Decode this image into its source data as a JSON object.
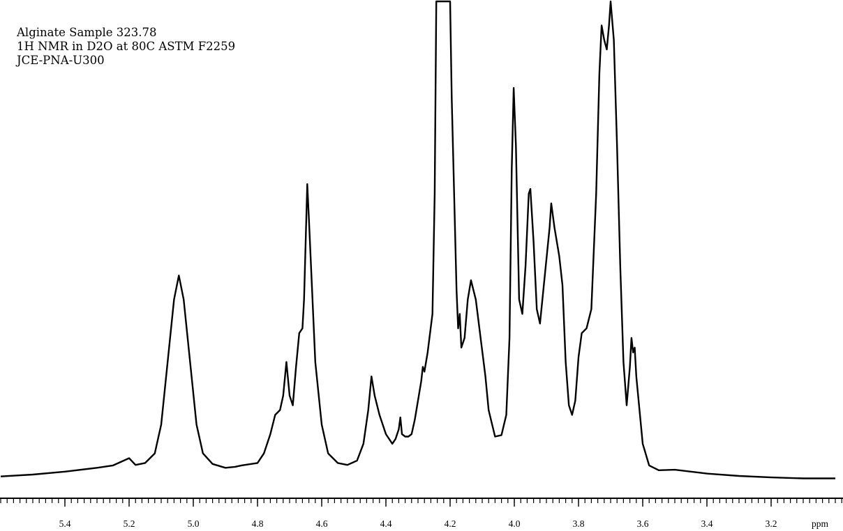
{
  "chart_data": {
    "type": "line",
    "annotations": [
      "Alginate Sample 323.78",
      "1H NMR in D2O at 80C ASTM F2259",
      "JCE-PNA-U300"
    ],
    "x_unit": "ppm",
    "x_direction": "reversed",
    "xlim": [
      5.6,
      3.0
    ],
    "x_ticks": [
      "5.4",
      "5.2",
      "5.0",
      "4.8",
      "4.6",
      "4.4",
      "4.2",
      "4.0",
      "3.8",
      "3.6",
      "3.4",
      "3.2"
    ],
    "y_axis": "none",
    "grid": false,
    "color": "#000000",
    "points": [
      [
        5.6,
        1.2
      ],
      [
        5.5,
        1.6
      ],
      [
        5.4,
        2.2
      ],
      [
        5.3,
        3.0
      ],
      [
        5.25,
        3.5
      ],
      [
        5.2,
        5.0
      ],
      [
        5.18,
        3.6
      ],
      [
        5.15,
        4.0
      ],
      [
        5.12,
        6.0
      ],
      [
        5.1,
        12.0
      ],
      [
        5.08,
        25.0
      ],
      [
        5.06,
        38.0
      ],
      [
        5.045,
        43.0
      ],
      [
        5.03,
        38.0
      ],
      [
        5.01,
        25.0
      ],
      [
        4.99,
        12.0
      ],
      [
        4.97,
        6.0
      ],
      [
        4.94,
        3.8
      ],
      [
        4.9,
        3.0
      ],
      [
        4.87,
        3.2
      ],
      [
        4.85,
        3.5
      ],
      [
        4.8,
        4.0
      ],
      [
        4.78,
        6.0
      ],
      [
        4.76,
        10.0
      ],
      [
        4.745,
        14.0
      ],
      [
        4.73,
        15.0
      ],
      [
        4.72,
        18.0
      ],
      [
        4.71,
        25.0
      ],
      [
        4.7,
        18.0
      ],
      [
        4.69,
        16.0
      ],
      [
        4.68,
        24.0
      ],
      [
        4.67,
        31.0
      ],
      [
        4.66,
        32.0
      ],
      [
        4.655,
        38.0
      ],
      [
        4.645,
        62.0
      ],
      [
        4.64,
        55.0
      ],
      [
        4.63,
        40.0
      ],
      [
        4.62,
        25.0
      ],
      [
        4.6,
        12.0
      ],
      [
        4.58,
        6.0
      ],
      [
        4.55,
        4.0
      ],
      [
        4.52,
        3.6
      ],
      [
        4.49,
        4.5
      ],
      [
        4.47,
        8.0
      ],
      [
        4.455,
        15.0
      ],
      [
        4.445,
        22.0
      ],
      [
        4.435,
        18.0
      ],
      [
        4.42,
        14.0
      ],
      [
        4.4,
        10.0
      ],
      [
        4.38,
        8.0
      ],
      [
        4.37,
        9.0
      ],
      [
        4.36,
        11.0
      ],
      [
        4.355,
        13.5
      ],
      [
        4.35,
        10.0
      ],
      [
        4.34,
        9.5
      ],
      [
        4.33,
        9.5
      ],
      [
        4.32,
        10.0
      ],
      [
        4.31,
        13.0
      ],
      [
        4.3,
        17.0
      ],
      [
        4.29,
        21.0
      ],
      [
        4.285,
        24.0
      ],
      [
        4.28,
        23.0
      ],
      [
        4.27,
        27.0
      ],
      [
        4.255,
        35.0
      ],
      [
        4.248,
        60.0
      ],
      [
        4.243,
        100.0
      ],
      [
        4.2,
        100.0
      ],
      [
        4.195,
        80.0
      ],
      [
        4.18,
        40.0
      ],
      [
        4.175,
        32.0
      ],
      [
        4.17,
        35.0
      ],
      [
        4.165,
        28.0
      ],
      [
        4.155,
        30.0
      ],
      [
        4.145,
        38.0
      ],
      [
        4.135,
        42.0
      ],
      [
        4.12,
        38.0
      ],
      [
        4.105,
        30.0
      ],
      [
        4.09,
        22.0
      ],
      [
        4.08,
        15.0
      ],
      [
        4.06,
        9.5
      ],
      [
        4.04,
        9.8
      ],
      [
        4.025,
        14.0
      ],
      [
        4.015,
        30.0
      ],
      [
        4.008,
        65.0
      ],
      [
        4.002,
        82.0
      ],
      [
        3.995,
        70.0
      ],
      [
        3.985,
        38.0
      ],
      [
        3.975,
        35.0
      ],
      [
        3.965,
        45.0
      ],
      [
        3.955,
        60.0
      ],
      [
        3.95,
        61.0
      ],
      [
        3.94,
        50.0
      ],
      [
        3.93,
        36.0
      ],
      [
        3.92,
        33.0
      ],
      [
        3.905,
        43.0
      ],
      [
        3.89,
        53.0
      ],
      [
        3.885,
        58.0
      ],
      [
        3.875,
        53.0
      ],
      [
        3.86,
        47.0
      ],
      [
        3.85,
        41.0
      ],
      [
        3.84,
        25.0
      ],
      [
        3.83,
        16.0
      ],
      [
        3.82,
        14.0
      ],
      [
        3.81,
        17.0
      ],
      [
        3.8,
        26.0
      ],
      [
        3.79,
        31.0
      ],
      [
        3.775,
        32.0
      ],
      [
        3.76,
        36.0
      ],
      [
        3.745,
        60.0
      ],
      [
        3.735,
        85.0
      ],
      [
        3.728,
        95.0
      ],
      [
        3.72,
        92.0
      ],
      [
        3.712,
        90.0
      ],
      [
        3.705,
        95.0
      ],
      [
        3.7,
        100.0
      ],
      [
        3.69,
        92.0
      ],
      [
        3.68,
        70.0
      ],
      [
        3.67,
        45.0
      ],
      [
        3.66,
        25.0
      ],
      [
        3.65,
        16.0
      ],
      [
        3.64,
        24.0
      ],
      [
        3.635,
        30.0
      ],
      [
        3.63,
        27.0
      ],
      [
        3.625,
        28.0
      ],
      [
        3.62,
        22.0
      ],
      [
        3.61,
        15.0
      ],
      [
        3.6,
        8.0
      ],
      [
        3.58,
        3.5
      ],
      [
        3.55,
        2.5
      ],
      [
        3.5,
        2.6
      ],
      [
        3.45,
        2.2
      ],
      [
        3.4,
        1.8
      ],
      [
        3.3,
        1.3
      ],
      [
        3.2,
        1.0
      ],
      [
        3.1,
        0.8
      ],
      [
        3.0,
        0.8
      ]
    ]
  }
}
